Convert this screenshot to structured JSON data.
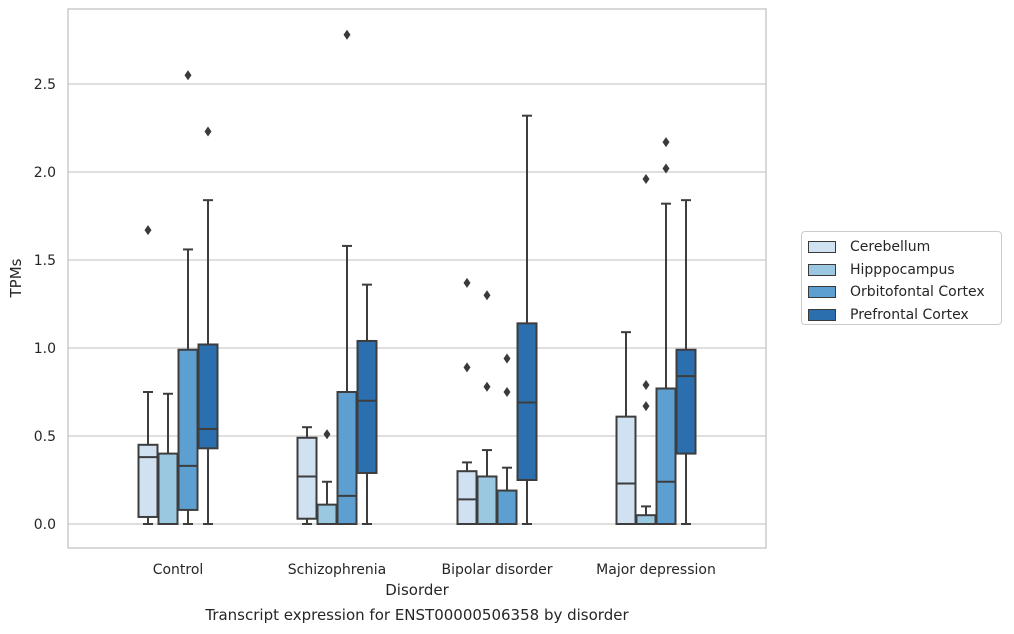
{
  "chart_data": {
    "type": "box",
    "title": "",
    "caption": "Transcript expression for ENST00000506358 by disorder",
    "xlabel": "Disorder",
    "ylabel": "TPMs",
    "ylim": [
      -0.13,
      2.93
    ],
    "yticks": [
      "0.0",
      "0.5",
      "1.0",
      "1.5",
      "2.0",
      "2.5"
    ],
    "grid": true,
    "legend_position": "right",
    "categories": [
      "Control",
      "Schizophrenia",
      "Bipolar disorder",
      "Major depression"
    ],
    "series": [
      {
        "name": "Cerebellum",
        "color": "#d0e1f2",
        "boxes": [
          {
            "whisker_low": 0.0,
            "q1": 0.04,
            "median": 0.38,
            "q3": 0.45,
            "whisker_high": 0.75,
            "outliers": [
              1.67
            ]
          },
          {
            "whisker_low": 0.0,
            "q1": 0.03,
            "median": 0.27,
            "q3": 0.49,
            "whisker_high": 0.55,
            "outliers": []
          },
          {
            "whisker_low": 0.0,
            "q1": 0.0,
            "median": 0.14,
            "q3": 0.3,
            "whisker_high": 0.35,
            "outliers": [
              0.89,
              1.37
            ]
          },
          {
            "whisker_low": 0.0,
            "q1": 0.0,
            "median": 0.23,
            "q3": 0.61,
            "whisker_high": 1.09,
            "outliers": []
          }
        ]
      },
      {
        "name": "Hipppocampus",
        "color": "#9ac8e0",
        "boxes": [
          {
            "whisker_low": 0.0,
            "q1": 0.0,
            "median": 0.0,
            "q3": 0.4,
            "whisker_high": 0.74,
            "outliers": []
          },
          {
            "whisker_low": 0.0,
            "q1": 0.0,
            "median": 0.0,
            "q3": 0.11,
            "whisker_high": 0.24,
            "outliers": [
              0.51
            ]
          },
          {
            "whisker_low": 0.0,
            "q1": 0.0,
            "median": 0.0,
            "q3": 0.27,
            "whisker_high": 0.42,
            "outliers": [
              0.78,
              1.3
            ]
          },
          {
            "whisker_low": 0.0,
            "q1": 0.0,
            "median": 0.0,
            "q3": 0.05,
            "whisker_high": 0.1,
            "outliers": [
              0.67,
              0.79,
              1.96
            ]
          }
        ]
      },
      {
        "name": "Orbitofontal Cortex",
        "color": "#5c9fd0",
        "boxes": [
          {
            "whisker_low": 0.0,
            "q1": 0.08,
            "median": 0.33,
            "q3": 0.99,
            "whisker_high": 1.56,
            "outliers": [
              2.55
            ]
          },
          {
            "whisker_low": 0.0,
            "q1": 0.0,
            "median": 0.16,
            "q3": 0.75,
            "whisker_high": 1.58,
            "outliers": [
              2.78
            ]
          },
          {
            "whisker_low": 0.0,
            "q1": 0.0,
            "median": 0.0,
            "q3": 0.19,
            "whisker_high": 0.32,
            "outliers": [
              0.75,
              0.94
            ]
          },
          {
            "whisker_low": 0.0,
            "q1": 0.0,
            "median": 0.24,
            "q3": 0.77,
            "whisker_high": 1.82,
            "outliers": [
              2.02,
              2.17
            ]
          }
        ]
      },
      {
        "name": "Prefrontal Cortex",
        "color": "#2c6fae",
        "boxes": [
          {
            "whisker_low": 0.0,
            "q1": 0.43,
            "median": 0.54,
            "q3": 1.02,
            "whisker_high": 1.84,
            "outliers": [
              2.23
            ]
          },
          {
            "whisker_low": 0.0,
            "q1": 0.29,
            "median": 0.7,
            "q3": 1.04,
            "whisker_high": 1.36,
            "outliers": []
          },
          {
            "whisker_low": 0.0,
            "q1": 0.25,
            "median": 0.69,
            "q3": 1.14,
            "whisker_high": 2.32,
            "outliers": []
          },
          {
            "whisker_low": 0.0,
            "q1": 0.4,
            "median": 0.84,
            "q3": 0.99,
            "whisker_high": 1.84,
            "outliers": []
          }
        ]
      }
    ]
  }
}
